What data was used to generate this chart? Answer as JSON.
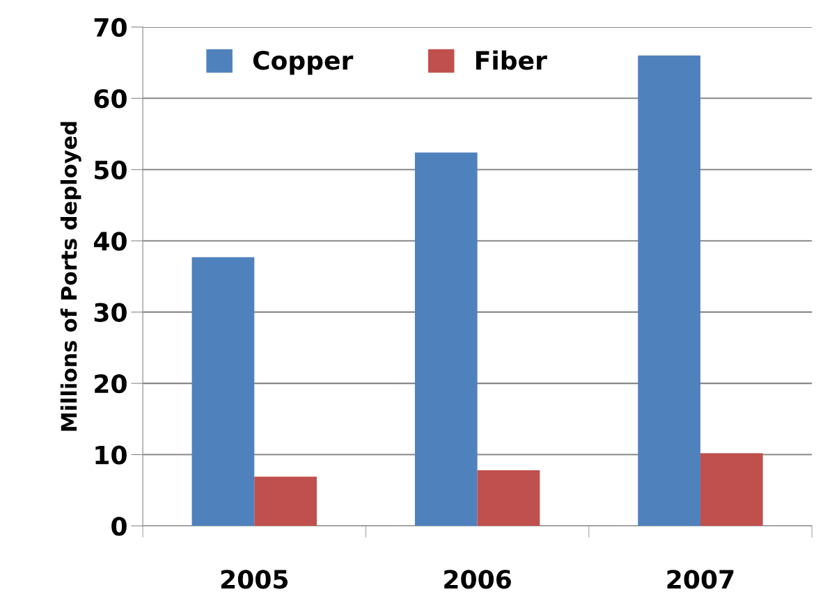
{
  "chart_data": {
    "type": "bar",
    "ylabel": "Millions of Ports deployed",
    "categories": [
      "2005",
      "2006",
      "2007"
    ],
    "series": [
      {
        "name": "Copper",
        "color": "#4f81bd",
        "values": [
          37.7,
          52.4,
          66.0
        ]
      },
      {
        "name": "Fiber",
        "color": "#c0504d",
        "values": [
          6.9,
          7.8,
          10.2
        ]
      }
    ],
    "ylim": [
      0,
      70
    ],
    "yticks": [
      0,
      10,
      20,
      30,
      40,
      50,
      60,
      70
    ],
    "grid": "y",
    "legend": "top"
  }
}
